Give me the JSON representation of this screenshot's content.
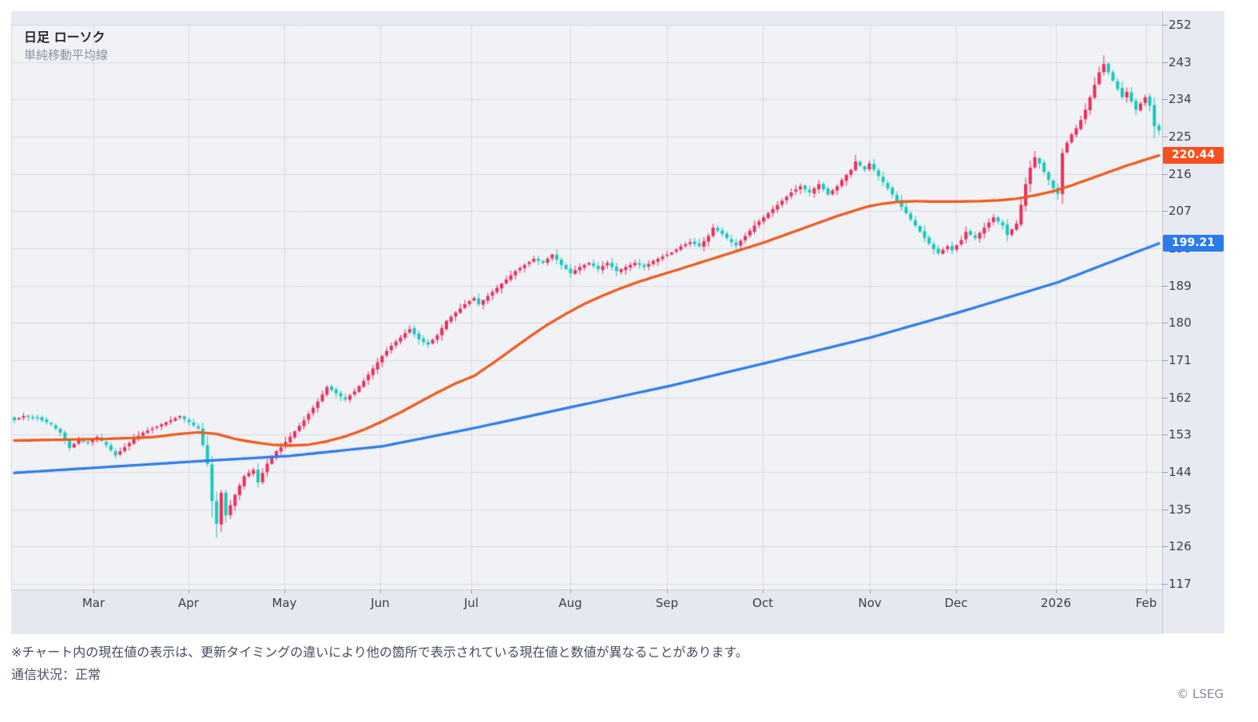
{
  "legend": {
    "title": "日足 ローソク",
    "subtitle": "単純移動平均線"
  },
  "badges": {
    "ma_short": "220.44",
    "ma_long": "199.21"
  },
  "footer": {
    "note": "※チャート内の現在値の表示は、更新タイミングの違いにより他の箇所で表示されている現在値と数値が異なることがあります。",
    "status": "通信状況：正常",
    "copyright": "© LSEG"
  },
  "colors": {
    "up": "#ee2d5d",
    "down": "#17c9bd",
    "ma_short": "#ee5a1c",
    "ma_long": "#2d7ce9",
    "plot_bg": "#f1f2f6",
    "grid": "#d7dae3",
    "panel_bg": "#e8eaf2",
    "axis_text": "#3a3f4b",
    "badge_short_bg": "#f4511e",
    "badge_long_bg": "#2b7bea"
  },
  "chart_data": {
    "type": "candlestick",
    "title": "日足 ローソク",
    "indicator": "単純移動平均線",
    "legend_position": "top-left",
    "grid": true,
    "candle_count": 250,
    "seed": 12,
    "y_axis": {
      "side": "right",
      "top_price": 252,
      "bottom_price": 117,
      "ticks": [
        252,
        243,
        234,
        225,
        216,
        207,
        198,
        189,
        180,
        171,
        162,
        153,
        144,
        135,
        126,
        117
      ]
    },
    "x_axis": {
      "labels": [
        {
          "text": "Mar",
          "index": 17.2
        },
        {
          "text": "Apr",
          "index": 37.9
        },
        {
          "text": "May",
          "index": 58.7
        },
        {
          "text": "Jun",
          "index": 79.6
        },
        {
          "text": "Jul",
          "index": 99.4
        },
        {
          "text": "Aug",
          "index": 120.9
        },
        {
          "text": "Sep",
          "index": 142.0
        },
        {
          "text": "Oct",
          "index": 162.8
        },
        {
          "text": "Nov",
          "index": 186.1
        },
        {
          "text": "Dec",
          "index": 204.9
        },
        {
          "text": "2026",
          "index": 226.6
        },
        {
          "text": "Feb",
          "index": 246.2
        }
      ]
    },
    "close_anchors": [
      [
        0,
        156.5
      ],
      [
        2,
        157.5
      ],
      [
        5,
        157.0
      ],
      [
        8,
        155.5
      ],
      [
        10,
        153.5
      ],
      [
        12,
        149.8
      ],
      [
        14,
        151.8
      ],
      [
        16,
        151.0
      ],
      [
        18,
        152.5
      ],
      [
        20,
        150.5
      ],
      [
        22,
        148.0
      ],
      [
        24,
        150.0
      ],
      [
        26,
        152.0
      ],
      [
        28,
        153.5
      ],
      [
        30,
        154.5
      ],
      [
        33,
        156.0
      ],
      [
        36,
        157.5
      ],
      [
        38,
        156.0
      ],
      [
        40,
        154.5
      ],
      [
        41,
        150.5
      ],
      [
        42,
        146.0
      ],
      [
        43,
        137.0
      ],
      [
        44,
        131.5
      ],
      [
        45,
        139.0
      ],
      [
        46,
        133.5
      ],
      [
        48,
        138.5
      ],
      [
        50,
        143.0
      ],
      [
        52,
        144.5
      ],
      [
        53,
        141.5
      ],
      [
        55,
        146.0
      ],
      [
        57,
        149.0
      ],
      [
        58,
        150.0
      ],
      [
        60,
        152.5
      ],
      [
        63,
        156.5
      ],
      [
        66,
        161.0
      ],
      [
        68,
        164.5
      ],
      [
        70,
        163.0
      ],
      [
        72,
        161.5
      ],
      [
        74,
        163.5
      ],
      [
        76,
        166.0
      ],
      [
        78,
        169.0
      ],
      [
        80,
        172.0
      ],
      [
        82,
        174.5
      ],
      [
        84,
        176.5
      ],
      [
        86,
        178.5
      ],
      [
        88,
        176.0
      ],
      [
        90,
        174.8
      ],
      [
        92,
        177.0
      ],
      [
        94,
        180.5
      ],
      [
        96,
        182.5
      ],
      [
        98,
        184.5
      ],
      [
        100,
        186.0
      ],
      [
        101,
        184.5
      ],
      [
        103,
        186.5
      ],
      [
        105,
        188.5
      ],
      [
        107,
        190.5
      ],
      [
        109,
        192.5
      ],
      [
        111,
        194.0
      ],
      [
        113,
        195.5
      ],
      [
        115,
        194.5
      ],
      [
        117,
        196.5
      ],
      [
        119,
        194.0
      ],
      [
        121,
        192.0
      ],
      [
        123,
        193.5
      ],
      [
        125,
        194.5
      ],
      [
        127,
        193.0
      ],
      [
        129,
        194.5
      ],
      [
        131,
        192.5
      ],
      [
        133,
        193.5
      ],
      [
        135,
        194.5
      ],
      [
        137,
        193.5
      ],
      [
        139,
        195.0
      ],
      [
        141,
        196.0
      ],
      [
        143,
        197.0
      ],
      [
        145,
        198.5
      ],
      [
        147,
        199.5
      ],
      [
        149,
        198.5
      ],
      [
        151,
        201.0
      ],
      [
        152,
        203.0
      ],
      [
        154,
        201.5
      ],
      [
        156,
        199.5
      ],
      [
        157,
        198.7
      ],
      [
        159,
        201.0
      ],
      [
        161,
        203.5
      ],
      [
        163,
        205.5
      ],
      [
        165,
        207.5
      ],
      [
        167,
        209.5
      ],
      [
        169,
        211.5
      ],
      [
        171,
        213.0
      ],
      [
        173,
        211.5
      ],
      [
        175,
        213.5
      ],
      [
        177,
        211.0
      ],
      [
        179,
        213.0
      ],
      [
        180,
        214.5
      ],
      [
        182,
        217.0
      ],
      [
        183,
        219.0
      ],
      [
        185,
        217.0
      ],
      [
        186,
        218.5
      ],
      [
        188,
        215.5
      ],
      [
        190,
        212.5
      ],
      [
        192,
        209.5
      ],
      [
        194,
        206.5
      ],
      [
        196,
        203.5
      ],
      [
        198,
        200.5
      ],
      [
        200,
        197.8
      ],
      [
        201,
        196.8
      ],
      [
        203,
        198.5
      ],
      [
        204,
        197.5
      ],
      [
        206,
        200.0
      ],
      [
        207,
        202.0
      ],
      [
        209,
        200.5
      ],
      [
        211,
        203.0
      ],
      [
        213,
        205.5
      ],
      [
        215,
        203.5
      ],
      [
        216,
        201.2
      ],
      [
        218,
        204.0
      ],
      [
        219,
        208.5
      ],
      [
        220,
        213.5
      ],
      [
        221,
        217.5
      ],
      [
        222,
        220.0
      ],
      [
        223,
        218.5
      ],
      [
        224,
        216.5
      ],
      [
        225,
        214.5
      ],
      [
        226,
        212.5
      ],
      [
        227,
        211.2
      ],
      [
        228,
        221.0
      ],
      [
        229,
        223.5
      ],
      [
        230,
        225.5
      ],
      [
        231,
        227.0
      ],
      [
        232,
        229.0
      ],
      [
        233,
        231.5
      ],
      [
        234,
        234.5
      ],
      [
        235,
        237.5
      ],
      [
        236,
        240.5
      ],
      [
        237,
        242.5
      ],
      [
        238,
        240.5
      ],
      [
        239,
        238.5
      ],
      [
        240,
        236.5
      ],
      [
        241,
        234.5
      ],
      [
        242,
        235.8
      ],
      [
        243,
        233.5
      ],
      [
        244,
        231.5
      ],
      [
        245,
        233.0
      ],
      [
        246,
        234.5
      ],
      [
        247,
        232.5
      ],
      [
        248,
        227.5
      ],
      [
        249,
        226.5
      ]
    ],
    "wick_overrides": {
      "43": {
        "low": 133.0
      },
      "44": {
        "low": 128.2
      },
      "45": {
        "low": 129.5
      },
      "183": {
        "high": 220.6
      },
      "222": {
        "high": 221.5
      },
      "227": {
        "low": 209.8
      },
      "237": {
        "high": 244.6
      },
      "248": {
        "low": 224.5
      }
    },
    "series_ma": [
      {
        "name": "sma-short",
        "color_key": "ma_short",
        "current_value": 220.44,
        "anchors": [
          [
            0,
            151.6
          ],
          [
            10,
            151.8
          ],
          [
            20,
            152.0
          ],
          [
            30,
            152.4
          ],
          [
            36,
            153.2
          ],
          [
            40,
            153.6
          ],
          [
            44,
            153.2
          ],
          [
            48,
            152.0
          ],
          [
            52,
            151.2
          ],
          [
            56,
            150.6
          ],
          [
            60,
            150.4
          ],
          [
            64,
            150.6
          ],
          [
            68,
            151.4
          ],
          [
            72,
            152.6
          ],
          [
            76,
            154.2
          ],
          [
            80,
            156.2
          ],
          [
            84,
            158.4
          ],
          [
            88,
            160.8
          ],
          [
            92,
            163.2
          ],
          [
            96,
            165.4
          ],
          [
            100,
            167.2
          ],
          [
            104,
            170.2
          ],
          [
            108,
            173.4
          ],
          [
            112,
            176.6
          ],
          [
            116,
            179.6
          ],
          [
            120,
            182.2
          ],
          [
            124,
            184.6
          ],
          [
            128,
            186.6
          ],
          [
            132,
            188.4
          ],
          [
            136,
            190.0
          ],
          [
            140,
            191.4
          ],
          [
            143,
            192.4
          ],
          [
            147,
            193.8
          ],
          [
            151,
            195.2
          ],
          [
            155,
            196.6
          ],
          [
            159,
            198.0
          ],
          [
            163,
            199.4
          ],
          [
            167,
            201.0
          ],
          [
            171,
            202.6
          ],
          [
            175,
            204.2
          ],
          [
            179,
            205.8
          ],
          [
            183,
            207.2
          ],
          [
            186,
            208.2
          ],
          [
            189,
            208.8
          ],
          [
            192,
            209.2
          ],
          [
            196,
            209.4
          ],
          [
            200,
            209.3
          ],
          [
            205,
            209.3
          ],
          [
            210,
            209.4
          ],
          [
            214,
            209.6
          ],
          [
            218,
            210.0
          ],
          [
            222,
            210.8
          ],
          [
            226,
            211.8
          ],
          [
            230,
            213.2
          ],
          [
            234,
            214.8
          ],
          [
            238,
            216.4
          ],
          [
            242,
            218.0
          ],
          [
            246,
            219.4
          ],
          [
            249,
            220.44
          ]
        ]
      },
      {
        "name": "sma-long",
        "color_key": "ma_long",
        "current_value": 199.21,
        "anchors": [
          [
            0,
            143.8
          ],
          [
            20,
            145.2
          ],
          [
            40,
            146.6
          ],
          [
            60,
            147.9
          ],
          [
            80,
            150.2
          ],
          [
            100,
            154.6
          ],
          [
            120,
            159.4
          ],
          [
            143,
            164.9
          ],
          [
            163,
            170.2
          ],
          [
            186,
            176.4
          ],
          [
            205,
            182.4
          ],
          [
            227,
            189.8
          ],
          [
            249,
            199.21
          ]
        ]
      }
    ]
  }
}
